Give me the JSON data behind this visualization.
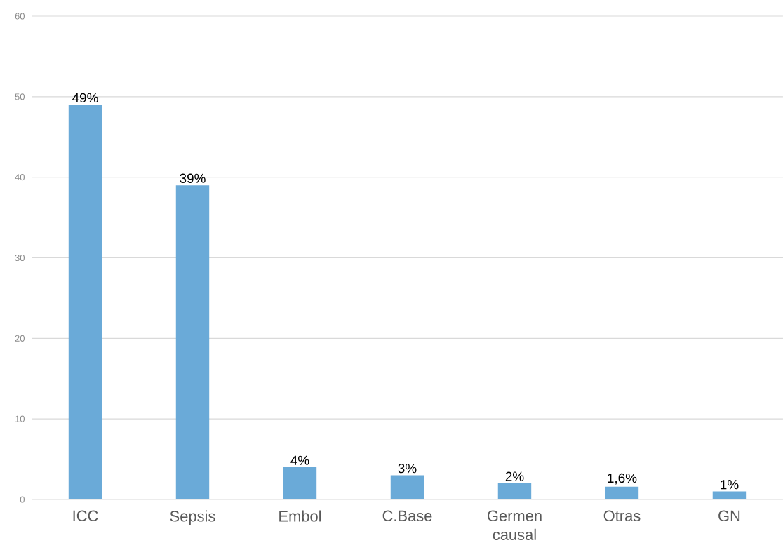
{
  "chart_data": {
    "type": "bar",
    "categories": [
      "ICC",
      "Sepsis",
      "Embol",
      "C.Base",
      "Germen causal",
      "Otras",
      "GN"
    ],
    "values": [
      49,
      39,
      4,
      3,
      2,
      1.6,
      1
    ],
    "value_labels": [
      "49%",
      "39%",
      "4%",
      "3%",
      "2%",
      "1,6%",
      "1%"
    ],
    "color": "#6aaad8",
    "ylim": [
      0,
      60
    ],
    "yticks": [
      0,
      10,
      20,
      30,
      40,
      50,
      60
    ],
    "grid": "y"
  }
}
